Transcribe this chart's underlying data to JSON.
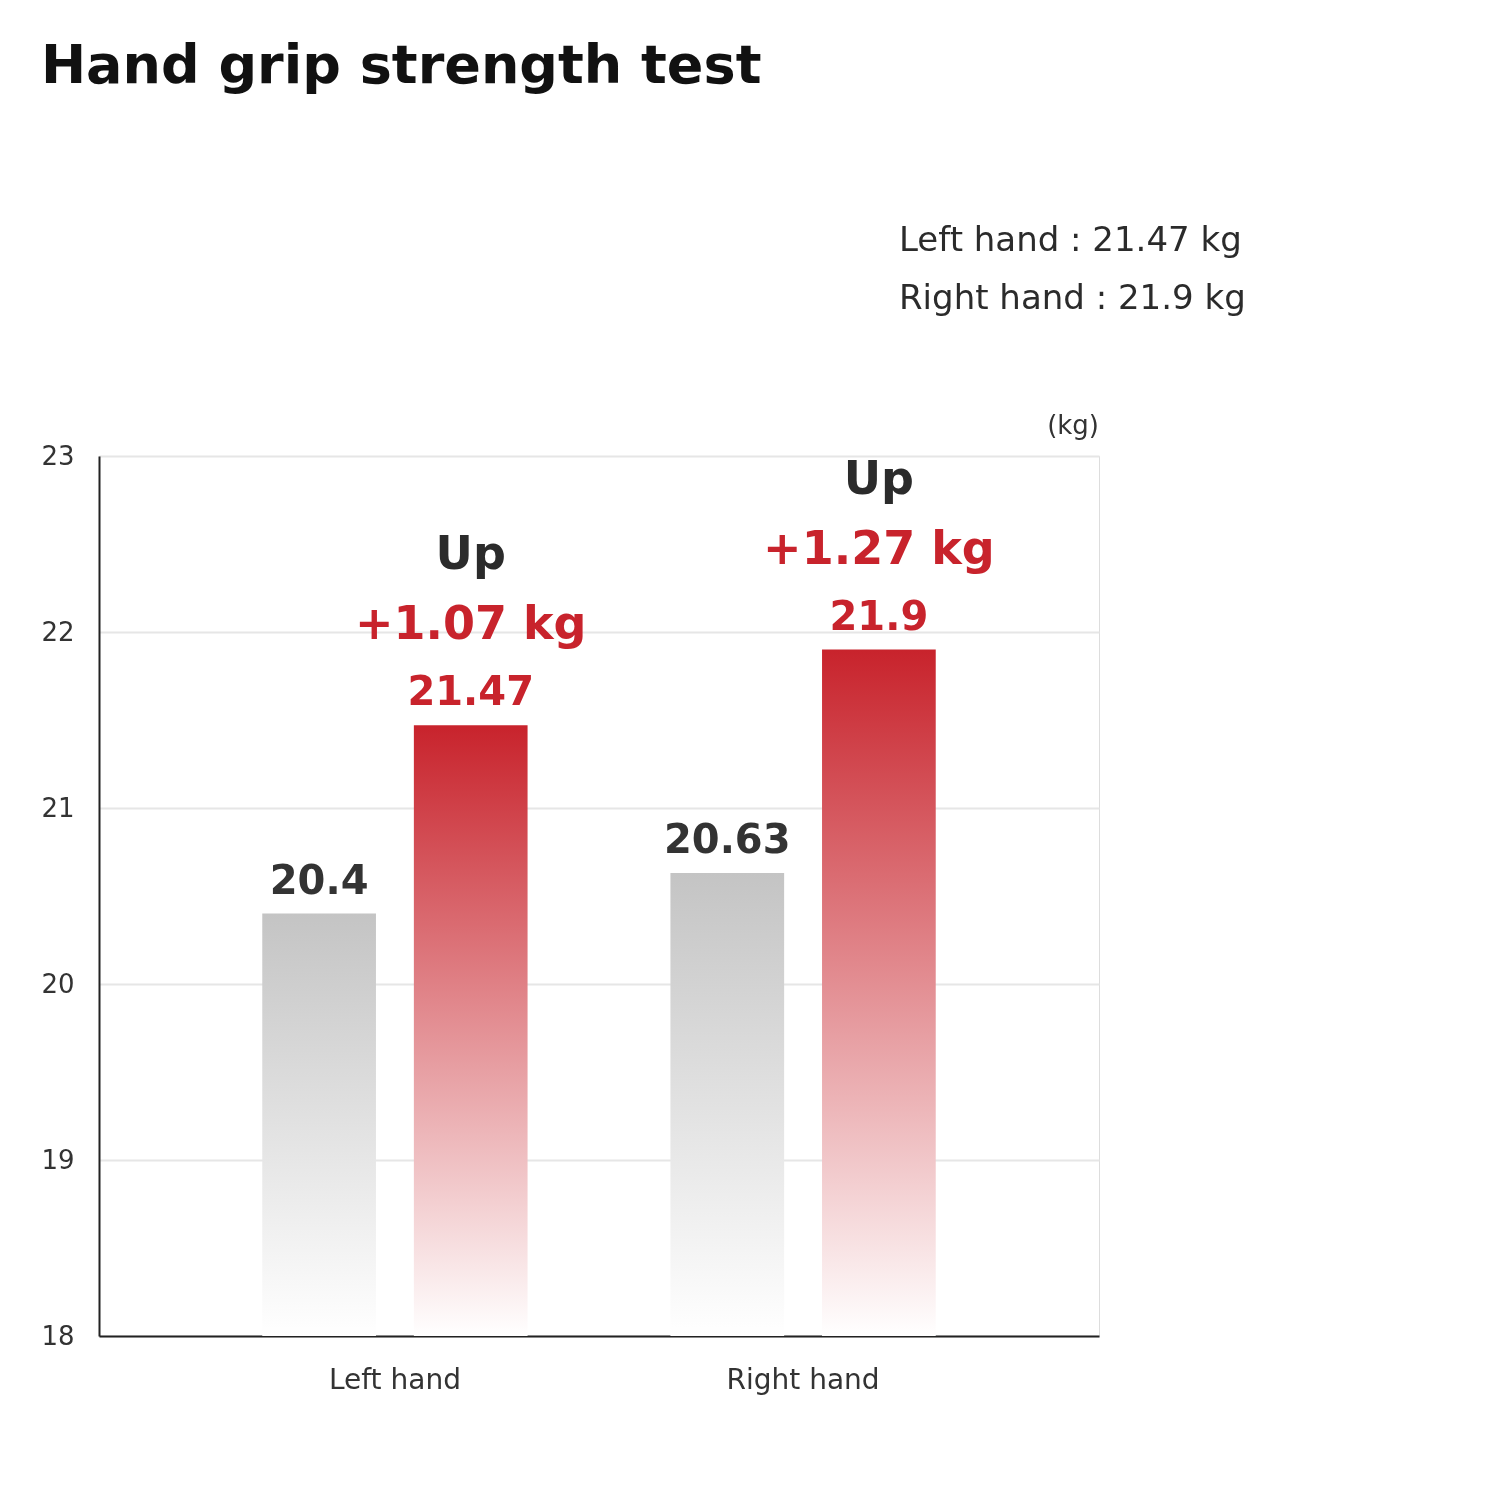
{
  "chart_data": {
    "type": "bar",
    "title": "Hand grip strength test",
    "categories": [
      "Left hand",
      "Right hand"
    ],
    "series": [
      {
        "color": "#c4c4c4",
        "values": [
          20.4,
          20.63
        ]
      },
      {
        "color": "#c8232c",
        "values": [
          21.47,
          21.9
        ]
      }
    ],
    "ylabel": "(kg)",
    "ylim": [
      18,
      23
    ],
    "yticks": [
      18,
      19,
      20,
      21,
      22,
      23
    ],
    "grid": "y",
    "data_labels": true,
    "annotations": [
      "Left hand : 21.47 kg",
      "Right hand : 21.9 kg",
      "Up",
      "+1.07 kg",
      "Up",
      "+1.27 kg"
    ]
  }
}
